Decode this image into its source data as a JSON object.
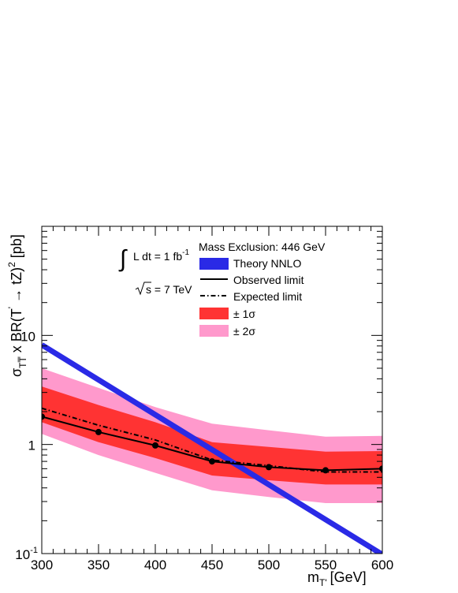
{
  "chart_data": {
    "type": "line",
    "y_scale": "log",
    "xlim": [
      300,
      600
    ],
    "ylim": [
      0.1,
      100
    ],
    "xlabel": "m",
    "xlabel_sub": "T'",
    "xlabel_unit": "[GeV]",
    "ylabel_parts": {
      "sigma": "σ",
      "sub": "TT̅",
      "mid": " x BR(T",
      "prime": "'",
      "arrow": " → tZ)",
      "sup": "2",
      "unit": " [pb]"
    },
    "x_ticks": [
      300,
      350,
      400,
      450,
      500,
      550,
      600
    ],
    "x_tick_labels": [
      "300",
      "350",
      "400",
      "450",
      "500",
      "550",
      "600"
    ],
    "y_ticks": [
      {
        "value": 0.1,
        "base": "10",
        "exp": "-1"
      },
      {
        "value": 1,
        "base": "1",
        "exp": ""
      },
      {
        "value": 10,
        "base": "10",
        "exp": ""
      }
    ],
    "x": [
      300,
      350,
      400,
      450,
      500,
      550,
      600
    ],
    "series": [
      {
        "key": "theory",
        "name": "Theory NNLO",
        "color": "#2a2ae6",
        "x": [
          300,
          600
        ],
        "values": [
          8.2,
          0.098
        ]
      },
      {
        "key": "observed",
        "name": "Observed limit",
        "color": "#000000",
        "values": [
          1.8,
          1.3,
          0.98,
          0.7,
          0.62,
          0.58,
          0.6
        ]
      },
      {
        "key": "expected",
        "name": "Expected limit",
        "color": "#000000",
        "values": [
          2.15,
          1.5,
          1.1,
          0.72,
          0.64,
          0.56,
          0.56
        ]
      },
      {
        "key": "band1",
        "name": "± 1σ",
        "color": "#ff3333",
        "low": [
          1.6,
          1.05,
          0.75,
          0.52,
          0.47,
          0.43,
          0.43
        ],
        "high": [
          3.4,
          2.3,
          1.6,
          1.05,
          0.95,
          0.86,
          0.87
        ]
      },
      {
        "key": "band2",
        "name": "± 2σ",
        "color": "#ff99cc",
        "low": [
          1.25,
          0.8,
          0.55,
          0.38,
          0.33,
          0.29,
          0.29
        ],
        "high": [
          5.0,
          3.3,
          2.2,
          1.55,
          1.35,
          1.18,
          1.2
        ]
      }
    ],
    "annotations": {
      "mass_exclusion": "Mass Exclusion: 446 GeV",
      "lumi_prefix": "L dt = 1 fb",
      "lumi_sup": "-1",
      "sqrt_s": "s = 7 TeV"
    },
    "legend_position": "top-right",
    "grid": false
  }
}
